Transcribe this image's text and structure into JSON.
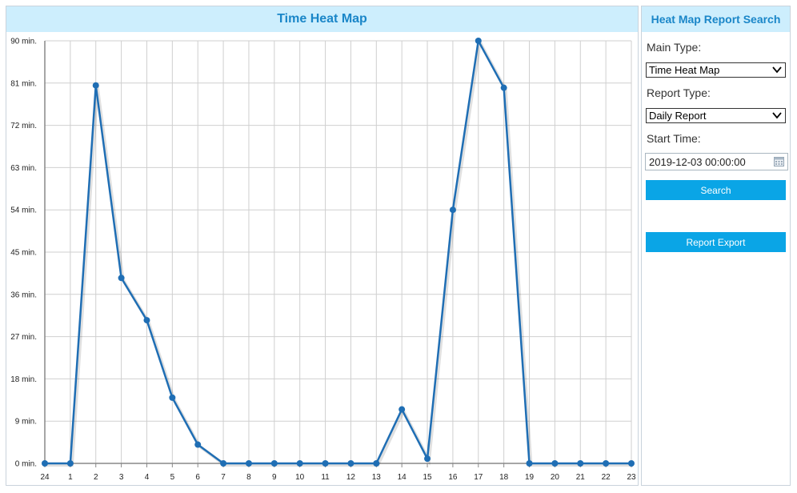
{
  "chart_panel": {
    "title": "Time Heat Map"
  },
  "search_panel": {
    "title": "Heat Map Report Search",
    "main_type_label": "Main Type:",
    "main_type_value": "Time Heat Map",
    "report_type_label": "Report Type:",
    "report_type_value": "Daily Report",
    "start_time_label": "Start Time:",
    "start_time_value": "2019-12-03 00:00:00",
    "search_button": "Search",
    "export_button": "Report Export"
  },
  "colors": {
    "header_bg": "#cdeefd",
    "header_text": "#1a86c8",
    "line": "#1f6eb4",
    "button": "#0aa5e6"
  },
  "chart_data": {
    "type": "line",
    "title": "",
    "xlabel": "",
    "ylabel": "",
    "categories": [
      "24",
      "1",
      "2",
      "3",
      "4",
      "5",
      "6",
      "7",
      "8",
      "9",
      "10",
      "11",
      "12",
      "13",
      "14",
      "15",
      "16",
      "17",
      "18",
      "19",
      "20",
      "21",
      "22",
      "23"
    ],
    "y_ticks": [
      "0 min.",
      "9 min.",
      "18 min.",
      "27 min.",
      "36 min.",
      "45 min.",
      "54 min.",
      "63 min.",
      "72 min.",
      "81 min.",
      "90 min."
    ],
    "ylim": [
      0,
      90
    ],
    "grid": true,
    "series": [
      {
        "values": [
          0,
          0,
          80.5,
          39.5,
          30.5,
          14,
          4,
          0,
          0,
          0,
          0,
          0,
          0,
          0,
          11.5,
          1,
          54,
          90,
          80,
          0,
          0,
          0,
          0,
          0
        ]
      }
    ]
  }
}
